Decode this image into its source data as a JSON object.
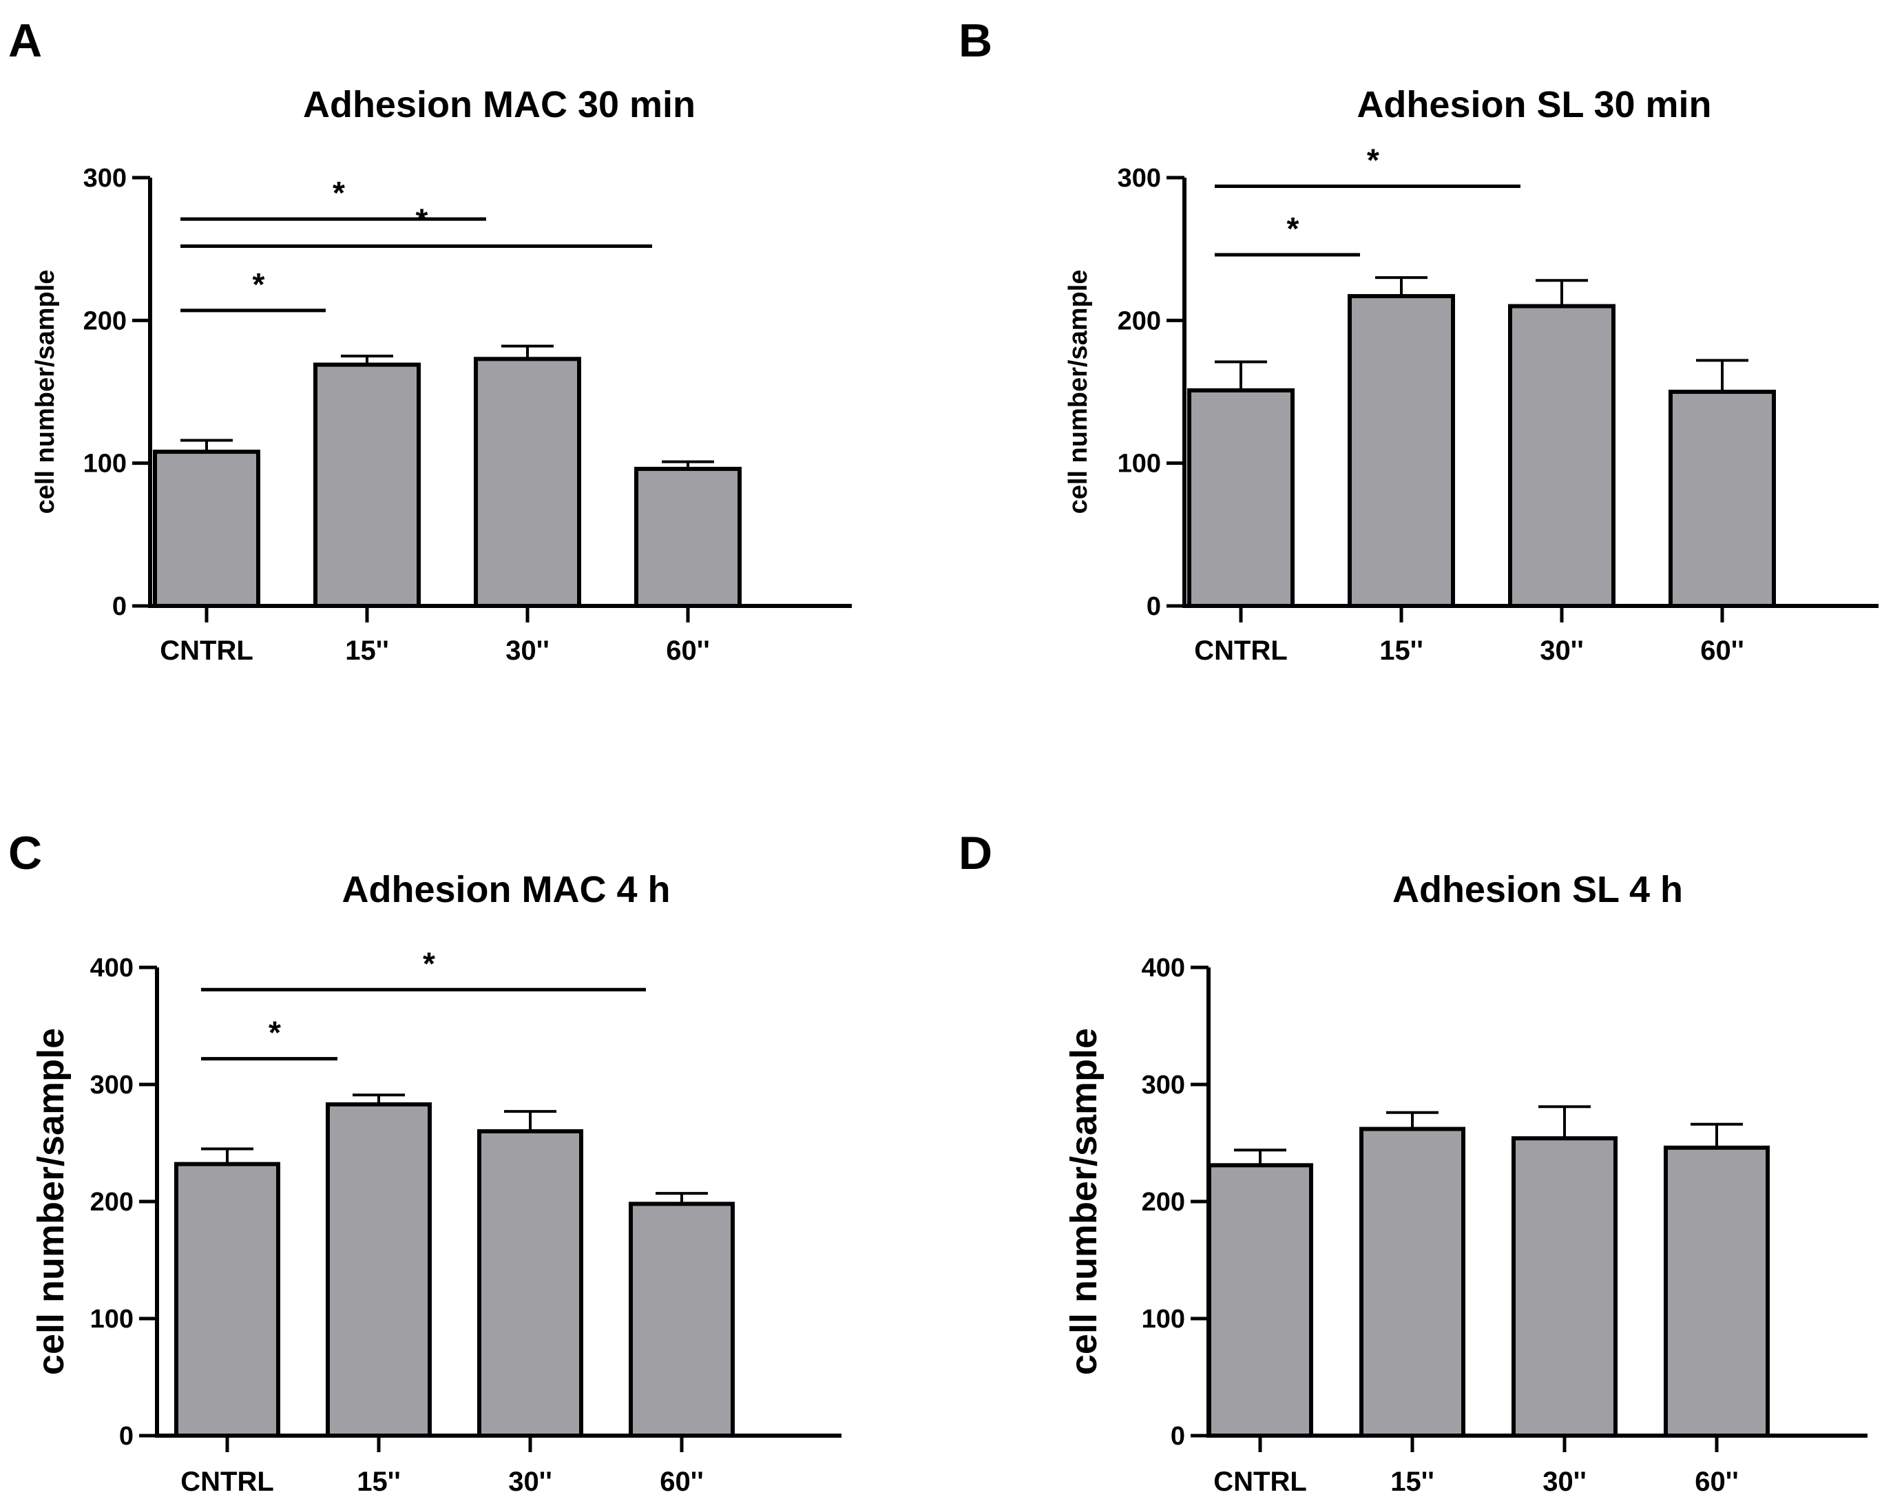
{
  "chart_data": [
    {
      "panel": "A",
      "type": "bar",
      "title": "Adhesion MAC 30 min",
      "ylabel": "cell number/sample",
      "xlabel": "",
      "categories": [
        "CNTRL",
        "15''",
        "30''",
        "60''"
      ],
      "values": [
        108,
        169,
        173,
        96
      ],
      "errors": [
        8,
        6,
        9,
        5
      ],
      "ylim": [
        0,
        300
      ],
      "yticks": [
        "0",
        "100",
        "200",
        "300"
      ],
      "bar_color": "#a0a0a4",
      "significance": [
        {
          "from": 0,
          "to": 1,
          "y": 207,
          "label": "*"
        },
        {
          "from": 0,
          "to": 2,
          "y": 271,
          "label": "*"
        },
        {
          "from": 0,
          "to": 3,
          "y": 252,
          "label": "*"
        }
      ]
    },
    {
      "panel": "B",
      "type": "bar",
      "title": "Adhesion SL 30 min",
      "ylabel": "cell number/sample",
      "xlabel": "",
      "categories": [
        "CNTRL",
        "15''",
        "30''",
        "60''"
      ],
      "values": [
        151,
        217,
        210,
        150
      ],
      "errors": [
        20,
        13,
        18,
        22
      ],
      "ylim": [
        0,
        300
      ],
      "yticks": [
        "0",
        "100",
        "200",
        "300"
      ],
      "bar_color": "#a0a0a4",
      "significance": [
        {
          "from": 0,
          "to": 1,
          "y": 246,
          "label": "*"
        },
        {
          "from": 0,
          "to": 2,
          "y": 294,
          "label": "*"
        }
      ]
    },
    {
      "panel": "C",
      "type": "bar",
      "title": "Adhesion MAC 4 h",
      "ylabel": "cell number/sample",
      "xlabel": "",
      "categories": [
        "CNTRL",
        "15''",
        "30''",
        "60''"
      ],
      "values": [
        232,
        283,
        260,
        198
      ],
      "errors": [
        13,
        8,
        17,
        9
      ],
      "ylim": [
        0,
        400
      ],
      "yticks": [
        "0",
        "100",
        "200",
        "300",
        "400"
      ],
      "bar_color": "#a0a0a4",
      "significance": [
        {
          "from": 0,
          "to": 1,
          "y": 322,
          "label": "*"
        },
        {
          "from": 0,
          "to": 3,
          "y": 381,
          "label": "*"
        }
      ]
    },
    {
      "panel": "D",
      "type": "bar",
      "title": "Adhesion SL 4 h",
      "ylabel": "cell number/sample",
      "xlabel": "",
      "categories": [
        "CNTRL",
        "15''",
        "30''",
        "60''"
      ],
      "values": [
        231,
        262,
        254,
        246
      ],
      "errors": [
        13,
        14,
        27,
        20
      ],
      "ylim": [
        0,
        400
      ],
      "yticks": [
        "0",
        "100",
        "200",
        "300",
        "400"
      ],
      "bar_color": "#a0a0a4",
      "significance": []
    }
  ]
}
